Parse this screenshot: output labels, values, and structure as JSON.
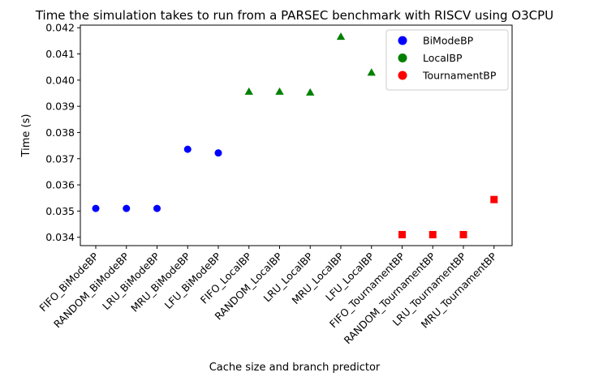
{
  "chart_data": {
    "type": "scatter",
    "title": "Time the simulation takes to run from a PARSEC benchmark with RISCV using O3CPU",
    "xlabel": "Cache size and branch predictor",
    "ylabel": "Time (s)",
    "ylim": [
      0.03368,
      0.0421
    ],
    "yticks": [
      "0.034",
      "0.035",
      "0.036",
      "0.037",
      "0.038",
      "0.039",
      "0.040",
      "0.041",
      "0.042"
    ],
    "grid": false,
    "legend_position": "top-right",
    "categories": [
      "FIFO_BiModeBP",
      "RANDOM_BiModeBP",
      "LRU_BiModeBP",
      "MRU_BiModeBP",
      "LFU_BiModeBP",
      "FIFO_LocalBP",
      "RANDOM_LocalBP",
      "LRU_LocalBP",
      "MRU_LocalBP",
      "LFU_LocalBP",
      "FIFO_TournamentBP",
      "RANDOM_TournamentBP",
      "LRU_TournamentBP",
      "MRU_TournamentBP"
    ],
    "series": [
      {
        "name": "BiModeBP",
        "color": "#0000ff",
        "marker": "circle",
        "category_indices": [
          0,
          1,
          2,
          3,
          4
        ],
        "values": [
          0.0351,
          0.0351,
          0.0351,
          0.03736,
          0.03722
        ]
      },
      {
        "name": "LocalBP",
        "color": "#008000",
        "marker": "triangle",
        "category_indices": [
          5,
          6,
          7,
          8,
          9
        ],
        "values": [
          0.03956,
          0.03956,
          0.03953,
          0.04166,
          0.04029
        ]
      },
      {
        "name": "TournamentBP",
        "color": "#ff0000",
        "marker": "square",
        "category_indices": [
          10,
          11,
          12,
          13
        ],
        "values": [
          0.0341,
          0.0341,
          0.0341,
          0.03544
        ]
      }
    ]
  }
}
